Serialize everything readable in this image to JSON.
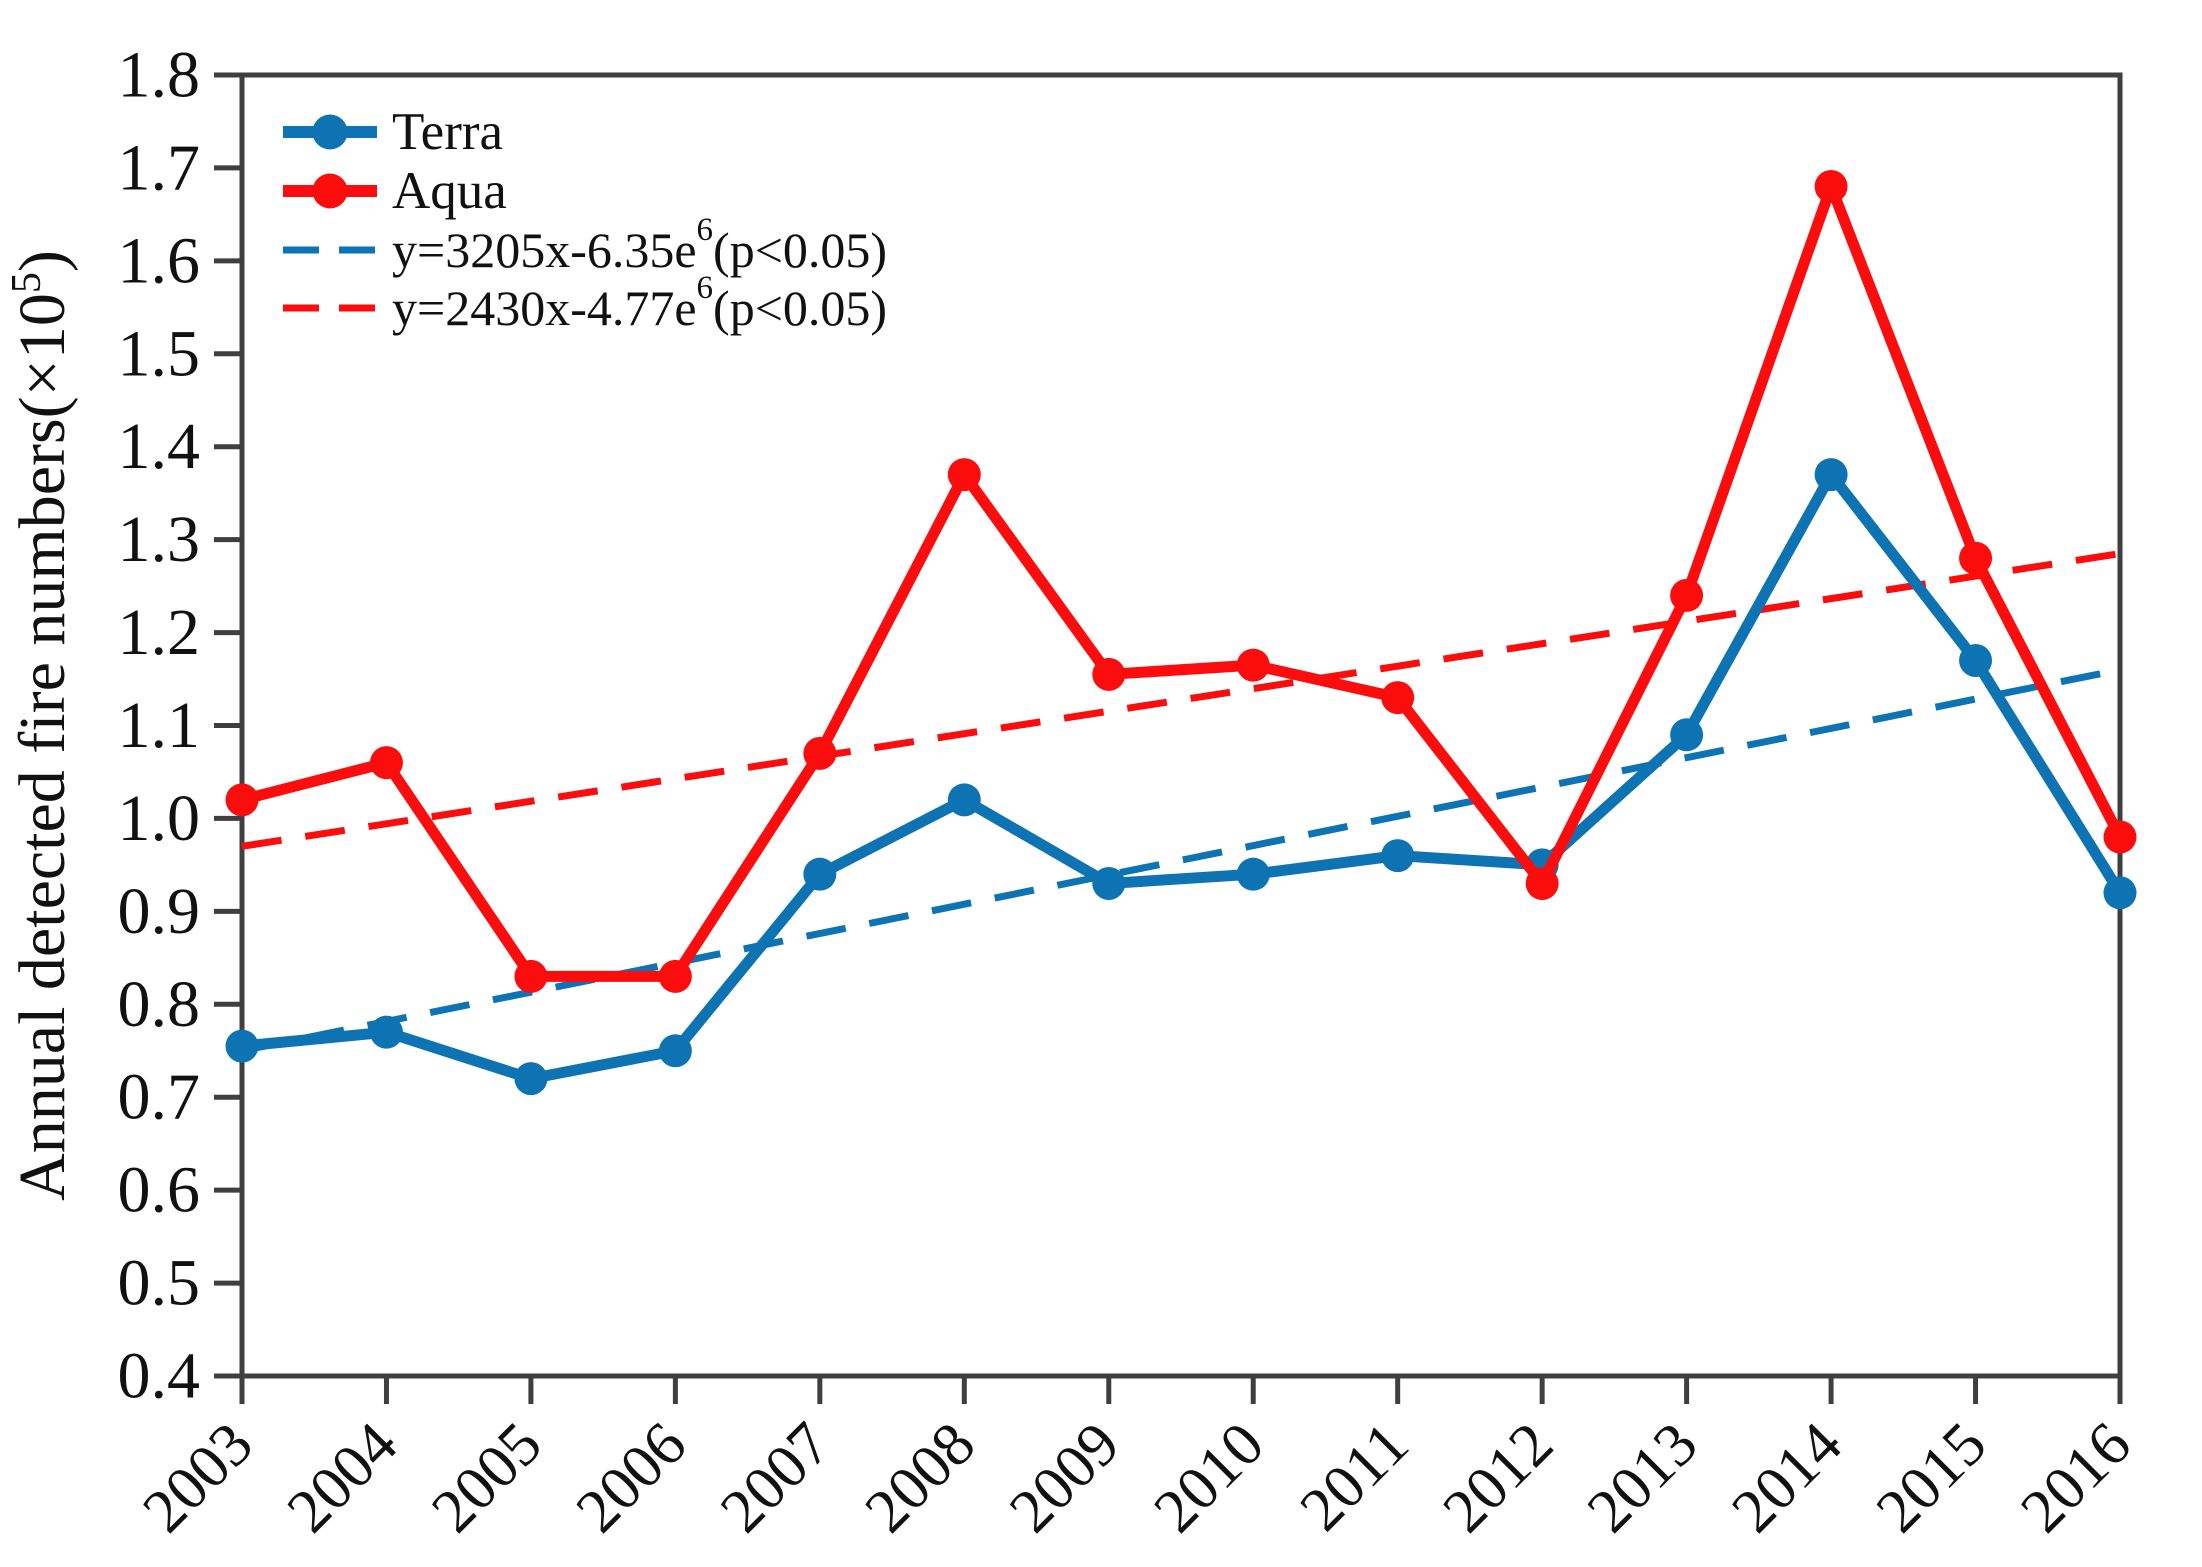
{
  "figure": {
    "background": "#ffffff",
    "axis_color": "#3f3f3f",
    "text_color": "#111111"
  },
  "chart_data": {
    "type": "line",
    "title": "",
    "xlabel": "",
    "ylabel": {
      "text": "Annual detected fire numbers(×10",
      "exp": "5",
      "close": ")"
    },
    "ylim": [
      0.4,
      1.8
    ],
    "ytick_labels": [
      "0.4",
      "0.5",
      "0.6",
      "0.7",
      "0.8",
      "0.9",
      "1.0",
      "1.1",
      "1.2",
      "1.3",
      "1.4",
      "1.5",
      "1.6",
      "1.7",
      "1.8"
    ],
    "x": [
      2003,
      2004,
      2005,
      2006,
      2007,
      2008,
      2009,
      2010,
      2011,
      2012,
      2013,
      2014,
      2015,
      2016
    ],
    "xtick_labels": [
      "2003",
      "2004",
      "2005",
      "2006",
      "2007",
      "2008",
      "2009",
      "2010",
      "2011",
      "2012",
      "2013",
      "2014",
      "2015",
      "2016"
    ],
    "grid": false,
    "legend_position": "top-left",
    "series": [
      {
        "name": "Terra",
        "style": "solid-marker",
        "color": "#0d73b3",
        "values": [
          0.755,
          0.77,
          0.72,
          0.75,
          0.94,
          1.02,
          0.93,
          0.94,
          0.96,
          0.95,
          1.09,
          1.37,
          1.17,
          0.92
        ]
      },
      {
        "name": "Aqua",
        "style": "solid-marker",
        "color": "#fb0d0d",
        "values": [
          1.02,
          1.06,
          0.83,
          0.83,
          1.07,
          1.37,
          1.155,
          1.165,
          1.13,
          0.93,
          1.24,
          1.68,
          1.28,
          0.98
        ]
      },
      {
        "name": "Terra trendline",
        "style": "dashed",
        "color": "#0d73b3",
        "x": [
          2003,
          2016
        ],
        "values": [
          0.75,
          1.16
        ],
        "equation": {
          "prefix": "y=3205x-6.35e",
          "exp": "6",
          "suffix": "(p<0.05)"
        }
      },
      {
        "name": "Aqua trendline",
        "style": "dashed",
        "color": "#fb0d0d",
        "x": [
          2003,
          2016
        ],
        "values": [
          0.97,
          1.285
        ],
        "equation": {
          "prefix": "y=2430x-4.77e",
          "exp": "6",
          "suffix": "(p<0.05)"
        }
      }
    ]
  }
}
